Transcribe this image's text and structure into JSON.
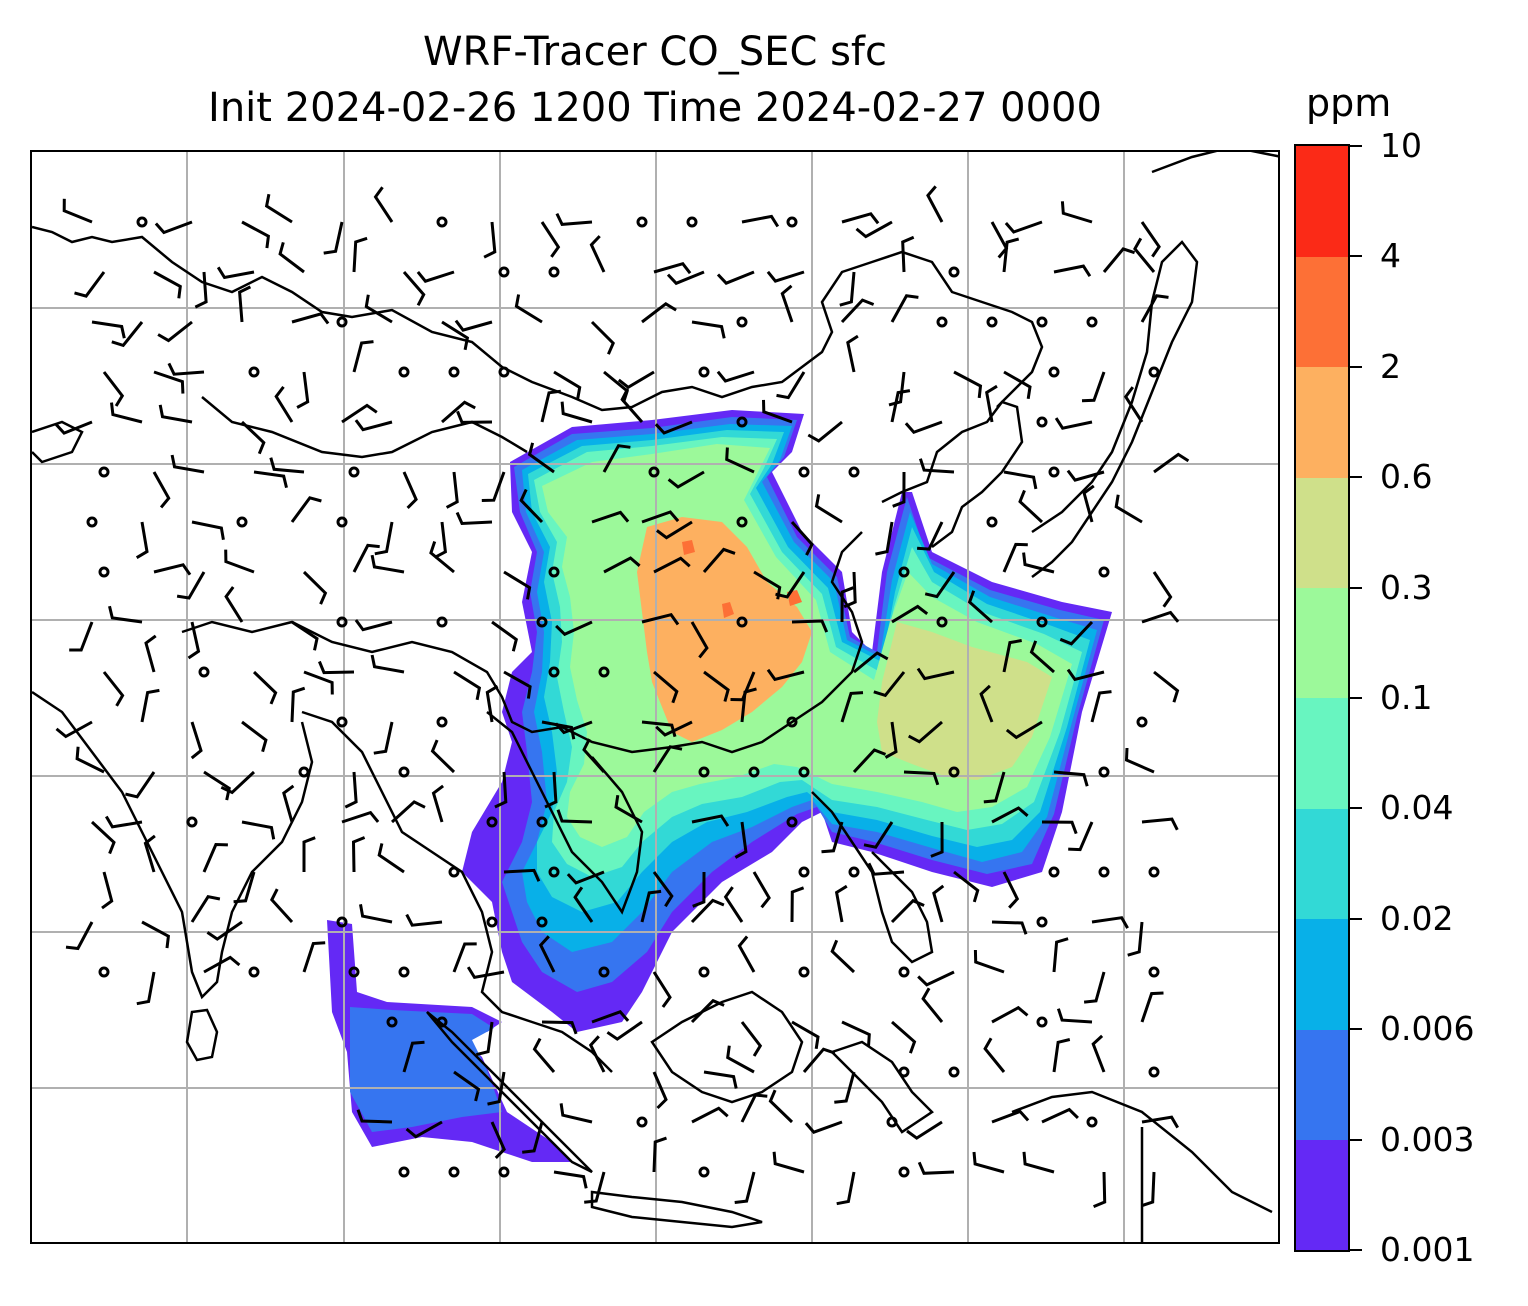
{
  "title": {
    "line1": "WRF-Tracer CO_SEC sfc",
    "line2": "Init 2024-02-26 1200 Time 2024-02-27 0000"
  },
  "colorbar": {
    "unit": "ppm",
    "ticks": [
      "0.001",
      "0.003",
      "0.006",
      "0.02",
      "0.04",
      "0.1",
      "0.3",
      "0.6",
      "2",
      "4",
      "10"
    ],
    "colors": [
      "#6429f5",
      "#3675f0",
      "#08b0e8",
      "#32d9d6",
      "#68f5c0",
      "#9cf99a",
      "#cfe08a",
      "#fdb060",
      "#fd7036",
      "#fb2a17"
    ]
  },
  "map": {
    "gridlines": true,
    "grid_color": "#b0b0b0",
    "field": "CO_SEC",
    "level": "sfc",
    "wind_symbol": "barbs",
    "plume_levels": [
      {
        "level_index": 0,
        "color": "#6429f5"
      },
      {
        "level_index": 1,
        "color": "#3675f0"
      },
      {
        "level_index": 2,
        "color": "#08b0e8"
      },
      {
        "level_index": 3,
        "color": "#32d9d6"
      },
      {
        "level_index": 4,
        "color": "#68f5c0"
      },
      {
        "level_index": 5,
        "color": "#9cf99a"
      },
      {
        "level_index": 6,
        "color": "#cfe08a"
      },
      {
        "level_index": 7,
        "color": "#fdb060"
      },
      {
        "level_index": 8,
        "color": "#fd7036"
      }
    ]
  }
}
